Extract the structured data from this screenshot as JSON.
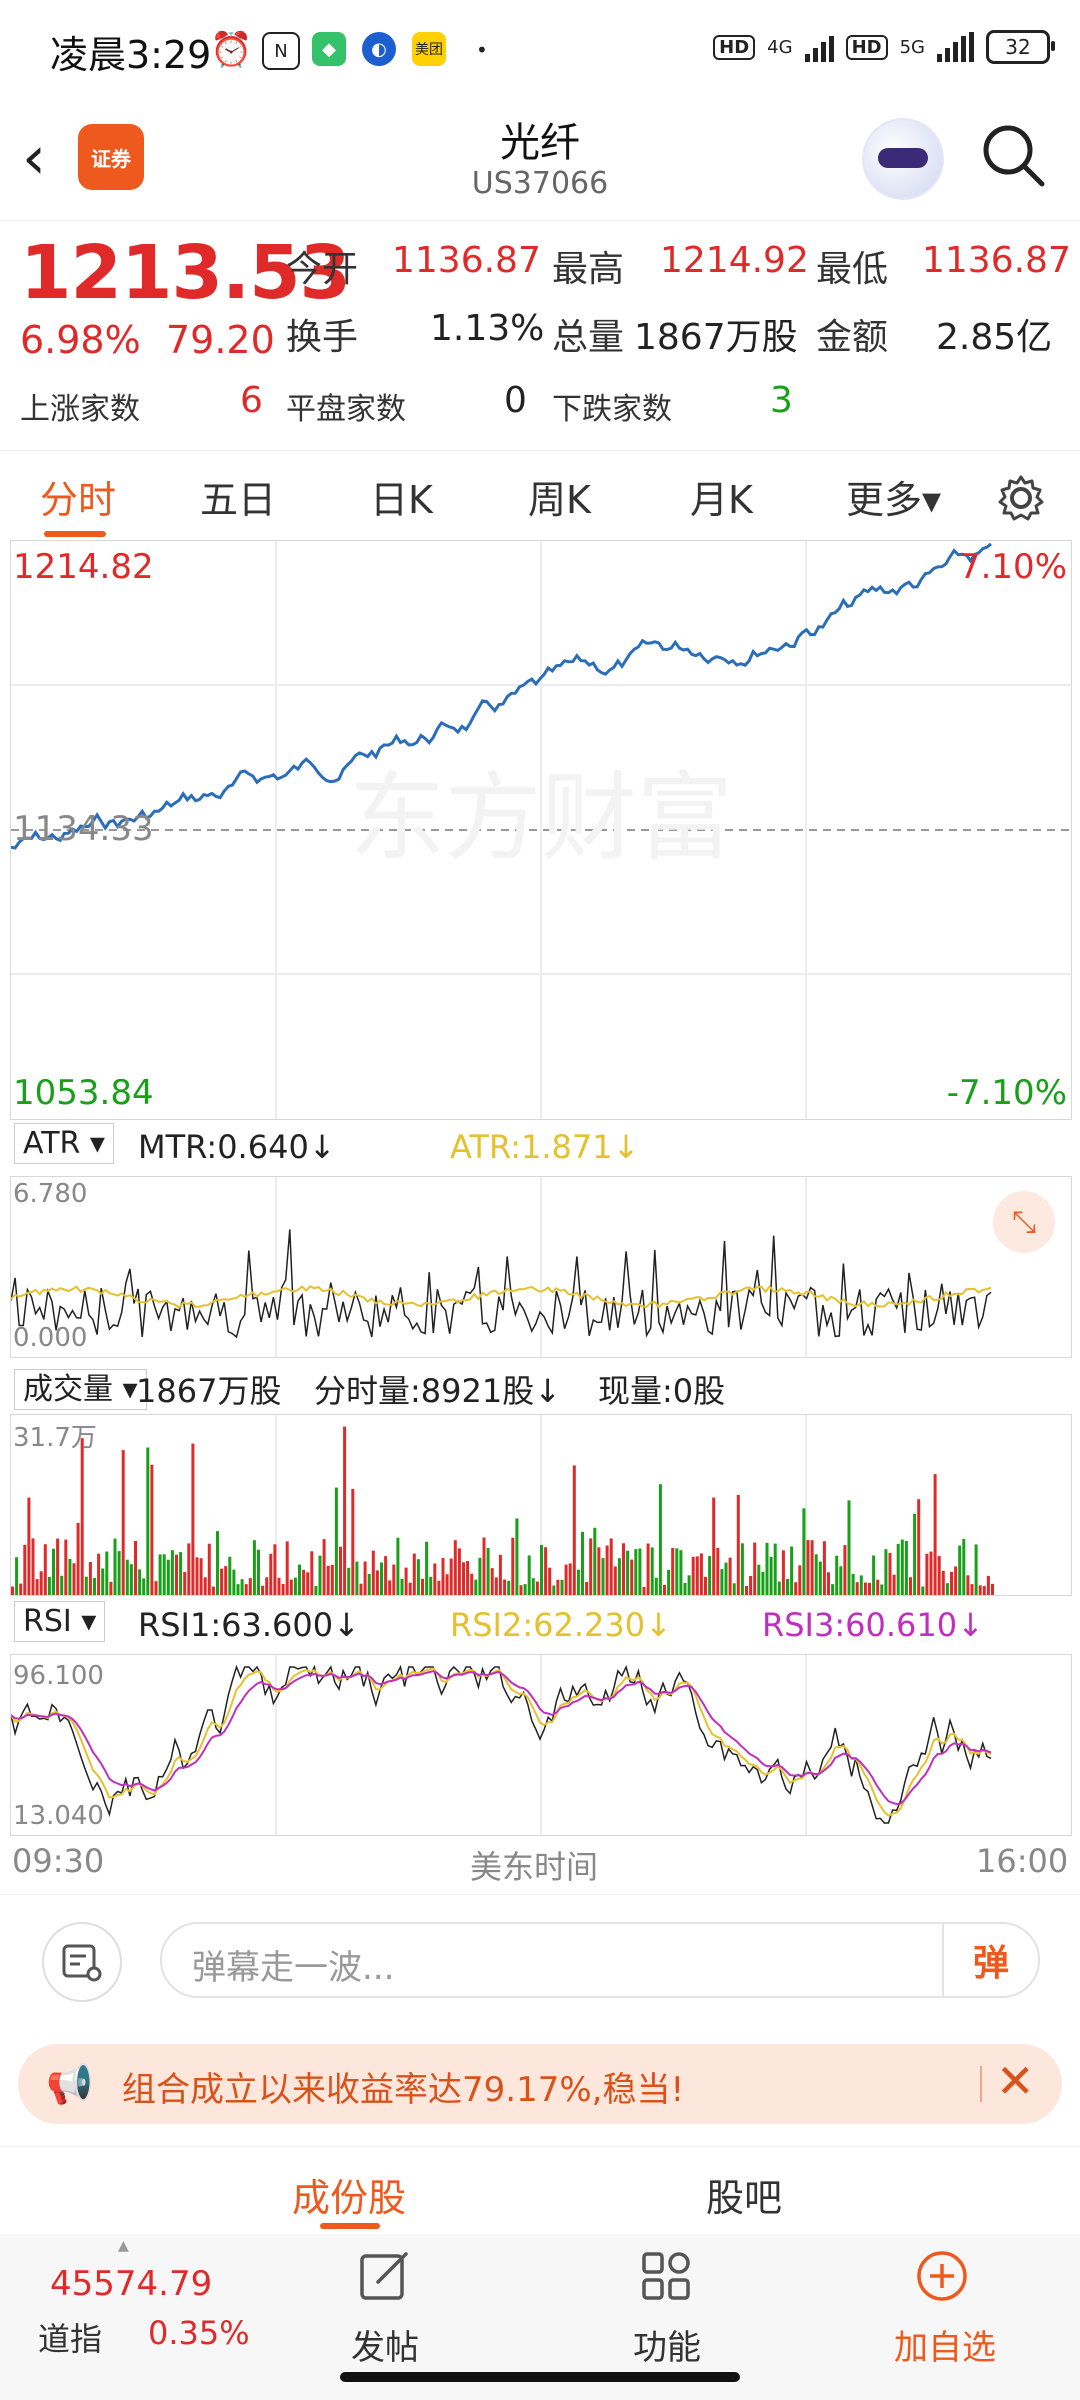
{
  "status_bar": {
    "time": "凌晨3:29",
    "network1": "4G",
    "network2": "5G",
    "hd": "HD",
    "battery": "32"
  },
  "header": {
    "back": "‹",
    "logo_text": "证券",
    "title": "光纤",
    "code": "US37066"
  },
  "quote": {
    "price": "1213.53",
    "change_pct": "6.98%",
    "change_abs": "79.20",
    "labels": {
      "open": "今开",
      "high": "最高",
      "low": "最低",
      "turnover": "换手",
      "volume": "总量",
      "amount": "金额"
    },
    "values": {
      "open": "1136.87",
      "high": "1214.92",
      "low": "1136.87",
      "turnover": "1.13%",
      "volume": "1867万股",
      "amount": "2.85亿"
    },
    "breadth": {
      "up_label": "上涨家数",
      "up": "6",
      "flat_label": "平盘家数",
      "flat": "0",
      "down_label": "下跌家数",
      "down": "3"
    }
  },
  "tabs": [
    "分时",
    "五日",
    "日K",
    "周K",
    "月K",
    "更多▾"
  ],
  "intraday": {
    "top_price": "1214.82",
    "top_pct": "7.10%",
    "mid_price": "1134.33",
    "bottom_price": "1053.84",
    "bottom_pct": "-7.10%",
    "watermark": "东方财富"
  },
  "atr": {
    "selector": "ATR",
    "mtr": "MTR:0.640↓",
    "atr": "ATR:1.871↓",
    "max": "6.780",
    "min": "0.000"
  },
  "volume": {
    "selector": "成交量",
    "total": "1867万股",
    "intraday_vol": "分时量:8921股↓",
    "current": "现量:0股",
    "max": "31.7万"
  },
  "rsi": {
    "selector": "RSI",
    "rsi1": "RSI1:63.600↓",
    "rsi2": "RSI2:62.230↓",
    "rsi3": "RSI3:60.610↓",
    "max": "96.100",
    "min": "13.040"
  },
  "time_axis": {
    "start": "09:30",
    "mid": "美东时间",
    "end": "16:00"
  },
  "danmu": {
    "placeholder": "弹幕走一波...",
    "button": "弹"
  },
  "banner": {
    "text": "组合成立以来收益率达79.17%,稳当!"
  },
  "sub_tabs": {
    "active": "成份股",
    "other": "股吧"
  },
  "bottom_bar": {
    "index_value": "45574.79",
    "index_name": "道指",
    "index_pct": "0.35%",
    "post": "发帖",
    "func": "功能",
    "add": "加自选"
  },
  "colors": {
    "up": "#e02a2a",
    "down": "#18a118",
    "accent": "#ee5a1e",
    "line": "#2a6db8",
    "atr_line": "#e5c12e",
    "rsi3": "#c030c0"
  }
}
